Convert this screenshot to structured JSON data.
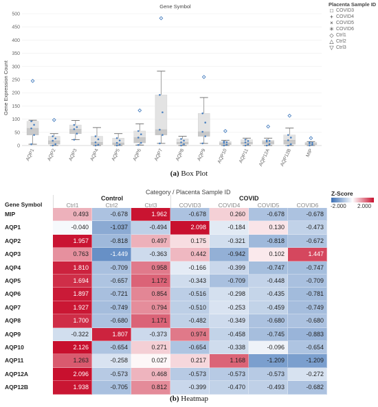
{
  "box_caption": {
    "label": "(a)",
    "text": "Box Plot"
  },
  "heat_caption": {
    "label": "(b)",
    "text": "Heatmap"
  },
  "legend": {
    "title": "Placenta Sample ID",
    "items": [
      {
        "symbol": "□",
        "label": "COVID3"
      },
      {
        "symbol": "+",
        "label": "COVID4"
      },
      {
        "symbol": "×",
        "label": "COVID5"
      },
      {
        "symbol": "✳",
        "label": "COVID6"
      },
      {
        "symbol": "◇",
        "label": "Ctrl1"
      },
      {
        "symbol": "△",
        "label": "Ctrl2"
      },
      {
        "symbol": "▽",
        "label": "Ctrl3"
      }
    ]
  },
  "chart_data": [
    {
      "type": "box",
      "title": "Gene Symbol",
      "xlabel": "",
      "ylabel": "Gene Expression Count",
      "ylim": [
        0,
        500
      ],
      "yticks": [
        0,
        50,
        100,
        150,
        200,
        250,
        300,
        350,
        400,
        450,
        500
      ],
      "categories": [
        "AQP1",
        "AQP2",
        "AQP3",
        "AQP4",
        "AQP5",
        "AQP6",
        "AQP7",
        "AQP8",
        "AQP9",
        "AQP10",
        "AQP11",
        "AQP12A",
        "AQP12B",
        "MIP"
      ],
      "boxes": [
        {
          "min": 5,
          "q1": 40,
          "median": 65,
          "q3": 92,
          "max": 96
        },
        {
          "min": 0,
          "q1": 5,
          "median": 18,
          "q3": 35,
          "max": 45
        },
        {
          "min": 22,
          "q1": 45,
          "median": 62,
          "q3": 78,
          "max": 95
        },
        {
          "min": 0,
          "q1": 3,
          "median": 12,
          "q3": 35,
          "max": 68
        },
        {
          "min": 0,
          "q1": 3,
          "median": 10,
          "q3": 28,
          "max": 45
        },
        {
          "min": 2,
          "q1": 10,
          "median": 30,
          "q3": 55,
          "max": 82
        },
        {
          "min": 8,
          "q1": 40,
          "median": 60,
          "q3": 192,
          "max": 282
        },
        {
          "min": 0,
          "q1": 5,
          "median": 12,
          "q3": 25,
          "max": 35
        },
        {
          "min": 8,
          "q1": 35,
          "median": 52,
          "q3": 122,
          "max": 182
        },
        {
          "min": 0,
          "q1": 3,
          "median": 10,
          "q3": 15,
          "max": 20
        },
        {
          "min": 0,
          "q1": 5,
          "median": 12,
          "q3": 22,
          "max": 28
        },
        {
          "min": 0,
          "q1": 5,
          "median": 15,
          "q3": 20,
          "max": 28
        },
        {
          "min": 0,
          "q1": 5,
          "median": 20,
          "q3": 40,
          "max": 66
        },
        {
          "min": 0,
          "q1": 3,
          "median": 8,
          "q3": 12,
          "max": 15
        }
      ],
      "outliers": [
        {
          "category": "AQP1",
          "value": 245
        },
        {
          "category": "AQP2",
          "value": 97
        },
        {
          "category": "AQP6",
          "value": 133
        },
        {
          "category": "AQP7",
          "value": 483
        },
        {
          "category": "AQP9",
          "value": 260
        },
        {
          "category": "AQP10",
          "value": 55
        },
        {
          "category": "AQP12A",
          "value": 72
        },
        {
          "category": "AQP12B",
          "value": 113
        },
        {
          "category": "MIP",
          "value": 28
        }
      ]
    },
    {
      "type": "heatmap",
      "title": "Category / Placenta Sample ID",
      "row_header": "Gene Symbol",
      "groups": [
        {
          "name": "Control",
          "columns": [
            "Ctrl1",
            "Ctrl2",
            "Ctrl3"
          ]
        },
        {
          "name": "COVID",
          "columns": [
            "COVID3",
            "COVID4",
            "COVID5",
            "COVID6"
          ]
        }
      ],
      "columns": [
        "Ctrl1",
        "Ctrl2",
        "Ctrl3",
        "COVID3",
        "COVID4",
        "COVID5",
        "COVID6"
      ],
      "rows": [
        "MIP",
        "AQP1",
        "AQP2",
        "AQP3",
        "AQP4",
        "AQP5",
        "AQP6",
        "AQP7",
        "AQP8",
        "AQP9",
        "AQP10",
        "AQP11",
        "AQP12A",
        "AQP12B"
      ],
      "values": [
        [
          "0.493",
          "-0.678",
          "1.962",
          "-0.678",
          "0.260",
          "-0.678",
          "-0.678"
        ],
        [
          "-0.040",
          "-1.037",
          "-0.494",
          "2.098",
          "-0.184",
          "0.130",
          "-0.473"
        ],
        [
          "1.957",
          "-0.818",
          "0.497",
          "0.175",
          "-0.321",
          "-0.818",
          "-0.672"
        ],
        [
          "0.763",
          "-1.449",
          "-0.363",
          "0.442",
          "-0.942",
          "0.102",
          "1.447"
        ],
        [
          "1.810",
          "-0.709",
          "0.958",
          "-0.166",
          "-0.399",
          "-0.747",
          "-0.747"
        ],
        [
          "1.694",
          "-0.657",
          "1.172",
          "-0.343",
          "-0.709",
          "-0.448",
          "-0.709"
        ],
        [
          "1.897",
          "-0.721",
          "0.854",
          "-0.516",
          "-0.298",
          "-0.435",
          "-0.781"
        ],
        [
          "1.927",
          "-0.749",
          "0.794",
          "-0.510",
          "-0.253",
          "-0.459",
          "-0.749"
        ],
        [
          "1.700",
          "-0.680",
          "1.171",
          "-0.482",
          "-0.349",
          "-0.680",
          "-0.680"
        ],
        [
          "-0.322",
          "1.807",
          "-0.373",
          "0.974",
          "-0.458",
          "-0.745",
          "-0.883"
        ],
        [
          "2.126",
          "-0.654",
          "0.271",
          "-0.654",
          "-0.338",
          "-0.096",
          "-0.654"
        ],
        [
          "1.263",
          "-0.258",
          "0.027",
          "0.217",
          "1.168",
          "-1.209",
          "-1.209"
        ],
        [
          "2.096",
          "-0.573",
          "0.468",
          "-0.573",
          "-0.573",
          "-0.573",
          "-0.272"
        ],
        [
          "1.938",
          "-0.705",
          "0.812",
          "-0.399",
          "-0.470",
          "-0.493",
          "-0.682"
        ]
      ],
      "legend_title": "Z-Score",
      "legend_range": [
        "-2.000",
        "2.000"
      ],
      "scale_limits": [
        -2,
        2
      ],
      "colors": {
        "low": "#3a6fb5",
        "mid": "#ffffff",
        "high": "#c8102e"
      }
    }
  ]
}
